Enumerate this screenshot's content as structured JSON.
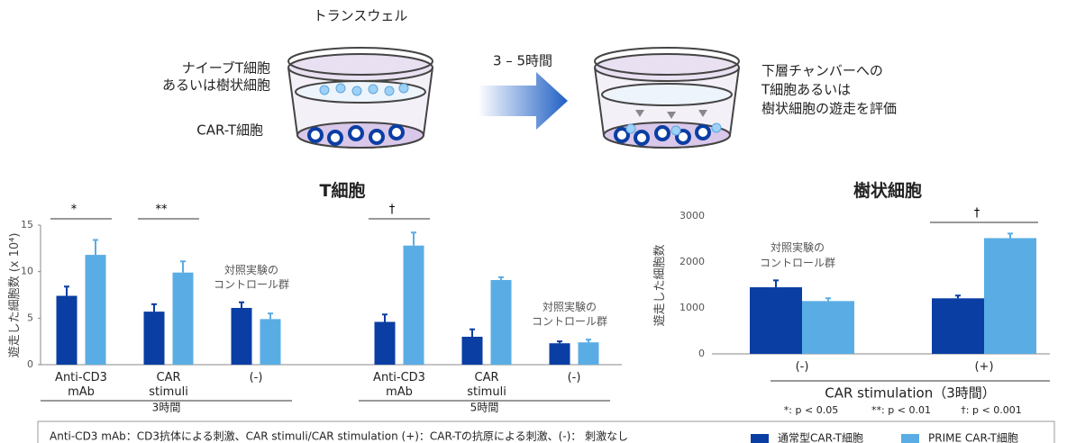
{
  "diagram": {
    "transwell": "トランスウェル",
    "upper_cells": "ナイーブT細胞\nあるいは樹状細胞",
    "lower_cells": "CAR-T細胞",
    "duration": "3 – 5時間",
    "readout": "下層チャンバーへの\nT細胞あるいは\n樹状細胞の遊走を評価"
  },
  "chart_data": [
    {
      "type": "bar",
      "title": "T細胞",
      "y_label": "遊走した細胞数 (x 10⁴)",
      "categories": [
        "Anti-CD3\nmAb",
        "CAR\nstimuli",
        "(-)",
        "Anti-CD3\nmAb",
        "CAR\nstimuli",
        "(-)"
      ],
      "group_labels": [
        "3時間",
        "5時間"
      ],
      "series": [
        {
          "name": "通常型CAR-T細胞",
          "color": "#0a3ea3",
          "values": [
            7.4,
            5.7,
            6.1,
            4.6,
            3.0,
            2.3
          ],
          "errors": [
            1.0,
            0.8,
            0.6,
            0.8,
            0.8,
            0.2
          ]
        },
        {
          "name": "PRIME CAR-T細胞",
          "color": "#5aade4",
          "values": [
            11.8,
            9.9,
            4.9,
            12.8,
            9.1,
            2.4
          ],
          "errors": [
            1.6,
            1.2,
            0.6,
            1.4,
            0.3,
            0.3
          ]
        }
      ],
      "ylim": [
        0,
        15
      ],
      "yticks": [
        0,
        5,
        10,
        15
      ],
      "significance": [
        {
          "label": "*",
          "category": 0
        },
        {
          "label": "**",
          "category": 1
        },
        {
          "label": "†",
          "category": 3
        }
      ],
      "notes": [
        {
          "text": "対照実験の\nコントロール群",
          "category": 2
        },
        {
          "text": "対照実験の\nコントロール群",
          "category": 5
        }
      ]
    },
    {
      "type": "bar",
      "title": "樹状細胞",
      "y_label": "遊走した細胞数",
      "x_label": "CAR stimulation（3時間）",
      "categories": [
        "(-)",
        "(+)"
      ],
      "series": [
        {
          "color": "#0a3ea3",
          "values": [
            1450,
            1210
          ],
          "errors": [
            150,
            60
          ]
        },
        {
          "color": "#5aade4",
          "values": [
            1150,
            2520
          ],
          "errors": [
            60,
            100
          ]
        }
      ],
      "ylim": [
        0,
        3000
      ],
      "yticks": [
        0,
        1000,
        2000,
        3000
      ],
      "significance": [
        {
          "label": "†",
          "category": 1
        }
      ],
      "notes": [
        {
          "text": "対照実験の\nコントロール群",
          "category": 0
        }
      ],
      "pvalue_notes": [
        "*: p < 0.05",
        "**: p < 0.01",
        "†: p < 0.001"
      ]
    }
  ],
  "footnote": "Anti-CD3 mAb：CD3抗体による刺激、CAR stimuli/CAR stimulation (+)：CAR-Tの抗原による刺激、(-)： 刺激なし"
}
